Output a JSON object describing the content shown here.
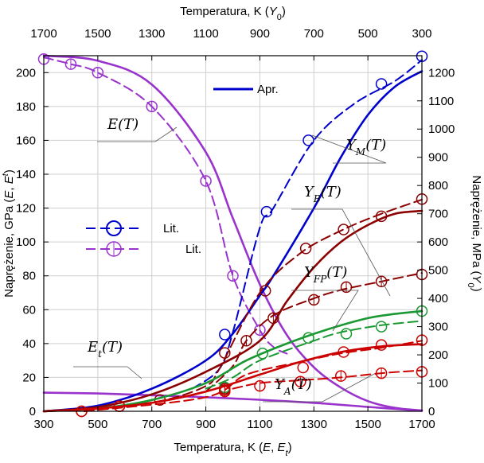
{
  "chart_data": {
    "type": "line",
    "xlabel_bottom": "Temperatura, K (E, E_t)",
    "xlabel_top": "Temperatura, K (Y_0)",
    "ylabel_left": "Naprężenie, GPa (E, E^t)",
    "ylabel_right": "Naprężenie, MPa (Y_0)",
    "x_bottom": {
      "lim": [
        300,
        1700
      ],
      "ticks": [
        300,
        500,
        700,
        900,
        1100,
        1300,
        1500,
        1700
      ]
    },
    "x_top": {
      "lim": [
        1700,
        300
      ],
      "ticks": [
        1700,
        1500,
        1300,
        1100,
        900,
        700,
        500,
        300
      ]
    },
    "y_left": {
      "lim": [
        0,
        210
      ],
      "ticks": [
        0,
        20,
        40,
        60,
        80,
        100,
        120,
        140,
        160,
        180,
        200
      ]
    },
    "y_right": {
      "lim": [
        0,
        1260
      ],
      "ticks": [
        0,
        100,
        200,
        300,
        400,
        500,
        600,
        700,
        800,
        900,
        1000,
        1100,
        1200
      ]
    },
    "grid": true,
    "legend": {
      "placement": "center-left and top-center",
      "entries": [
        {
          "label": "Apr.",
          "color": "#0000cc",
          "style": "solid"
        },
        {
          "label": "Lit.",
          "color": "#0000cc",
          "style": "dashed-circle"
        },
        {
          "label": "Lit.",
          "color": "#9933cc",
          "style": "dashed-circle-plus"
        }
      ]
    },
    "curve_labels": [
      "E(T)",
      "E_t(T)",
      "Y_M(T)",
      "Y_B(T)",
      "Y_FP(T)",
      "Y_A(T)"
    ],
    "series": [
      {
        "name": "E(T)",
        "color": "#9933cc",
        "axis": "bottom-left",
        "style": "solid",
        "points": [
          [
            300,
            210
          ],
          [
            500,
            207
          ],
          [
            700,
            193
          ],
          [
            900,
            153
          ],
          [
            1000,
            114
          ],
          [
            1100,
            75
          ],
          [
            1200,
            45
          ],
          [
            1300,
            26
          ],
          [
            1400,
            14
          ],
          [
            1500,
            6
          ],
          [
            1600,
            2
          ],
          [
            1700,
            0.5
          ]
        ]
      },
      {
        "name": "E(T) Lit.",
        "color": "#9933cc",
        "axis": "bottom-left",
        "style": "dashed",
        "points": [
          [
            300,
            209
          ],
          [
            400,
            205
          ],
          [
            500,
            200
          ],
          [
            700,
            180
          ],
          [
            900,
            136
          ],
          [
            1000,
            80
          ],
          [
            1100,
            48
          ],
          [
            1150,
            38
          ],
          [
            1200,
            34
          ]
        ],
        "markers": [
          [
            300,
            208
          ],
          [
            400,
            205
          ],
          [
            500,
            200
          ],
          [
            700,
            180
          ],
          [
            900,
            136
          ],
          [
            1000,
            80
          ],
          [
            1100,
            48
          ]
        ]
      },
      {
        "name": "E_t(T)",
        "color": "#9933cc",
        "axis": "bottom-left",
        "style": "solid",
        "points": [
          [
            300,
            11
          ],
          [
            500,
            10.5
          ],
          [
            700,
            9.5
          ],
          [
            900,
            8.3
          ],
          [
            1100,
            6.8
          ],
          [
            1300,
            5
          ],
          [
            1500,
            2.6
          ],
          [
            1700,
            0.3
          ]
        ]
      },
      {
        "name": "Y_M(T)",
        "color": "#0000cc",
        "axis": "top-right",
        "style": "solid",
        "points": [
          [
            1700,
            0
          ],
          [
            1500,
            20
          ],
          [
            1300,
            80
          ],
          [
            1100,
            180
          ],
          [
            1000,
            275
          ],
          [
            900,
            410
          ],
          [
            850,
            480
          ],
          [
            700,
            720
          ],
          [
            600,
            900
          ],
          [
            500,
            1050
          ],
          [
            400,
            1150
          ],
          [
            300,
            1205
          ]
        ]
      },
      {
        "name": "Y_M(T) Lit.",
        "color": "#0000cc",
        "axis": "top-right",
        "style": "dashed",
        "points": [
          [
            1150,
            80
          ],
          [
            1050,
            150
          ],
          [
            1000,
            280
          ],
          [
            900,
            650
          ],
          [
            850,
            720
          ],
          [
            700,
            960
          ],
          [
            550,
            1090
          ],
          [
            400,
            1170
          ],
          [
            300,
            1245
          ]
        ],
        "markers": [
          [
            1030,
            272
          ],
          [
            875,
            707
          ],
          [
            720,
            960
          ],
          [
            450,
            1160
          ],
          [
            300,
            1258
          ]
        ]
      },
      {
        "name": "Y_B(T)",
        "color": "#8b0000",
        "axis": "top-right",
        "style": "solid",
        "points": [
          [
            1700,
            0
          ],
          [
            1500,
            15
          ],
          [
            1300,
            60
          ],
          [
            1100,
            140
          ],
          [
            900,
            250
          ],
          [
            800,
            390
          ],
          [
            700,
            510
          ],
          [
            600,
            600
          ],
          [
            500,
            660
          ],
          [
            400,
            700
          ],
          [
            300,
            710
          ]
        ]
      },
      {
        "name": "Y_B(T) Lit.",
        "color": "#8b0000",
        "axis": "top-right",
        "style": "dashed",
        "points": [
          [
            1550,
            0
          ],
          [
            1400,
            20
          ],
          [
            1250,
            40
          ],
          [
            1100,
            90
          ],
          [
            1050,
            150
          ],
          [
            900,
            420
          ],
          [
            750,
            560
          ],
          [
            600,
            640
          ],
          [
            450,
            700
          ],
          [
            300,
            750
          ]
        ],
        "markers": [
          [
            1560,
            0
          ],
          [
            1420,
            18
          ],
          [
            1270,
            40
          ],
          [
            1030,
            207
          ],
          [
            880,
            427
          ],
          [
            730,
            577
          ],
          [
            590,
            644
          ],
          [
            450,
            691
          ],
          [
            300,
            752
          ]
        ]
      },
      {
        "name": "Y_B(T) Lit. 2",
        "color": "#8b0000",
        "axis": "top-right",
        "style": "dashed",
        "points": [
          [
            1100,
            70
          ],
          [
            1000,
            160
          ],
          [
            950,
            250
          ],
          [
            850,
            340
          ],
          [
            700,
            400
          ],
          [
            600,
            430
          ],
          [
            450,
            460
          ],
          [
            300,
            490
          ]
        ],
        "markers": [
          [
            1030,
            80
          ],
          [
            950,
            250
          ],
          [
            850,
            330
          ],
          [
            700,
            395
          ],
          [
            580,
            440
          ],
          [
            450,
            460
          ],
          [
            300,
            485
          ]
        ]
      },
      {
        "name": "Y_FP(T)",
        "color": "#1a9933",
        "axis": "top-right",
        "style": "solid",
        "points": [
          [
            1700,
            0
          ],
          [
            1500,
            10
          ],
          [
            1300,
            40
          ],
          [
            1100,
            100
          ],
          [
            950,
            180
          ],
          [
            800,
            240
          ],
          [
            650,
            290
          ],
          [
            500,
            330
          ],
          [
            400,
            345
          ],
          [
            300,
            355
          ]
        ],
        "markers": [
          [
            300,
            355
          ]
        ]
      },
      {
        "name": "Y_FP(T) Lit.",
        "color": "#1a9933",
        "axis": "top-right",
        "style": "dashed",
        "points": [
          [
            1100,
            80
          ],
          [
            1000,
            120
          ],
          [
            900,
            180
          ],
          [
            700,
            250
          ],
          [
            600,
            280
          ],
          [
            450,
            305
          ],
          [
            300,
            320
          ]
        ],
        "markers": [
          [
            1030,
            85
          ],
          [
            890,
            205
          ],
          [
            720,
            260
          ],
          [
            580,
            275
          ],
          [
            450,
            300
          ]
        ]
      },
      {
        "name": "Y_A(T)",
        "color": "#cc0000",
        "axis": "top-right",
        "style": "solid",
        "points": [
          [
            1700,
            0
          ],
          [
            1500,
            10
          ],
          [
            1300,
            30
          ],
          [
            1100,
            70
          ],
          [
            900,
            130
          ],
          [
            750,
            175
          ],
          [
            600,
            210
          ],
          [
            450,
            230
          ],
          [
            300,
            238
          ]
        ]
      },
      {
        "name": "Y_A(T) Lit.",
        "color": "#cc0000",
        "axis": "top-right",
        "style": "dashed",
        "points": [
          [
            1550,
            0
          ],
          [
            1100,
            50
          ],
          [
            950,
            130
          ],
          [
            750,
            175
          ],
          [
            600,
            205
          ],
          [
            450,
            225
          ],
          [
            300,
            250
          ]
        ],
        "markers": [
          [
            1560,
            0
          ],
          [
            1420,
            18
          ],
          [
            1030,
            75
          ],
          [
            740,
            155
          ],
          [
            590,
            210
          ],
          [
            450,
            235
          ],
          [
            300,
            252
          ]
        ]
      },
      {
        "name": "Y_A(T) Lit. 2",
        "color": "#cc0000",
        "axis": "top-right",
        "style": "dashed",
        "points": [
          [
            1000,
            80
          ],
          [
            900,
            100
          ],
          [
            750,
            110
          ],
          [
            600,
            120
          ],
          [
            450,
            135
          ],
          [
            300,
            145
          ]
        ],
        "markers": [
          [
            1030,
            70
          ],
          [
            900,
            90
          ],
          [
            750,
            105
          ],
          [
            600,
            125
          ],
          [
            450,
            135
          ],
          [
            300,
            140
          ]
        ]
      }
    ]
  }
}
